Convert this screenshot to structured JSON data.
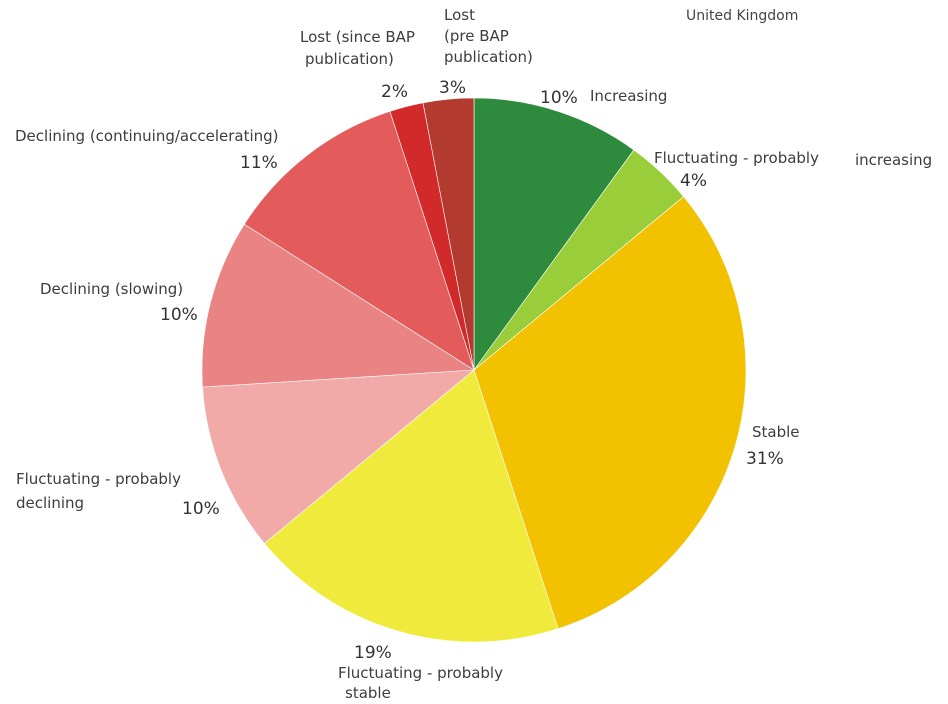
{
  "chart_data": {
    "type": "pie",
    "title": "United Kingdom",
    "slices": [
      {
        "name": "Increasing",
        "line1": "Increasing",
        "line2": "",
        "line3": "",
        "pct_label": "10%",
        "value": 10,
        "color": "#2e8b3e"
      },
      {
        "name": "Fluctuating - probably increasing",
        "line1": "Fluctuating - probably",
        "line2": "increasing",
        "line3": "",
        "pct_label": "4%",
        "value": 4,
        "color": "#9acd3a"
      },
      {
        "name": "Stable",
        "line1": "Stable",
        "line2": "",
        "line3": "",
        "pct_label": "31%",
        "value": 31,
        "color": "#f2c200"
      },
      {
        "name": "Fluctuating - probably stable",
        "line1": "Fluctuating - probably",
        "line2": "stable",
        "line3": "",
        "pct_label": "19%",
        "value": 19,
        "color": "#f0ea3c"
      },
      {
        "name": "Fluctuating - probably declining",
        "line1": "Fluctuating - probably",
        "line2": "declining",
        "line3": "",
        "pct_label": "10%",
        "value": 10,
        "color": "#f2aaa8"
      },
      {
        "name": "Declining (slowing)",
        "line1": "Declining (slowing)",
        "line2": "",
        "line3": "",
        "pct_label": "10%",
        "value": 10,
        "color": "#ea8383"
      },
      {
        "name": "Declining (continuing/accelerating)",
        "line1": "Declining (continuing/accelerating)",
        "line2": "",
        "line3": "",
        "pct_label": "11%",
        "value": 11,
        "color": "#e35b5b"
      },
      {
        "name": "Lost (since BAP publication)",
        "line1": "Lost (since BAP",
        "line2": "publication)",
        "line3": "",
        "pct_label": "2%",
        "value": 2,
        "color": "#d22a2a"
      },
      {
        "name": "Lost (pre BAP publication)",
        "line1": "Lost",
        "line2": "(pre BAP",
        "line3": "publication)",
        "pct_label": "3%",
        "value": 3,
        "color": "#b23a2e"
      }
    ]
  }
}
